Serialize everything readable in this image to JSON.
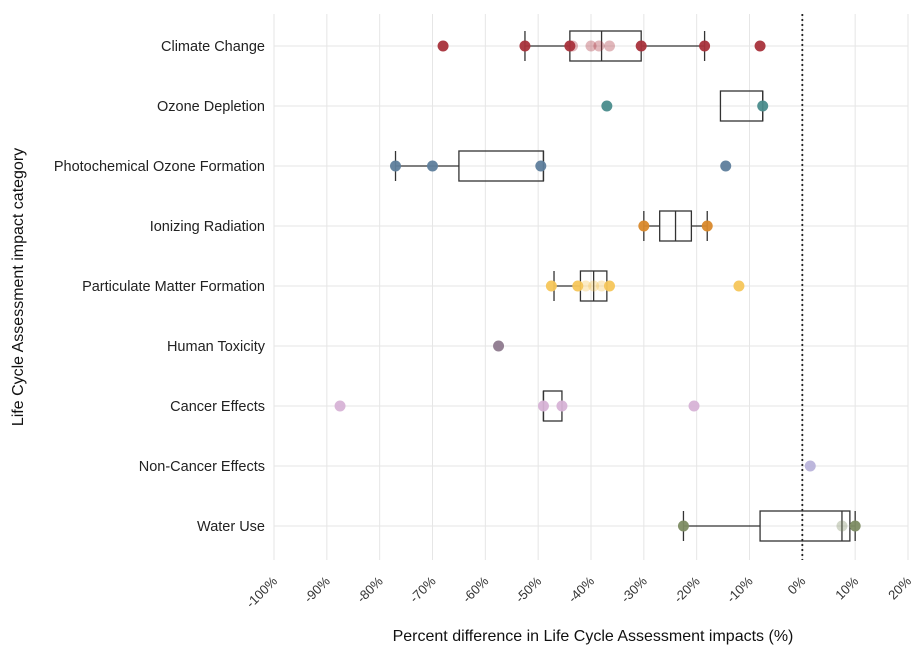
{
  "chart_data": {
    "type": "box",
    "xlabel": "Percent difference in Life Cycle Assessment impacts (%)",
    "ylabel": "Life Cycle Assessment impact category",
    "xlim": [
      -100,
      20
    ],
    "x_ticks": [
      -100,
      -90,
      -80,
      -70,
      -60,
      -50,
      -40,
      -30,
      -20,
      -10,
      0,
      10,
      20
    ],
    "x_tick_labels": [
      "-100%",
      "-90%",
      "-80%",
      "-70%",
      "-60%",
      "-50%",
      "-40%",
      "-30%",
      "-20%",
      "-10%",
      "0%",
      "10%",
      "20%"
    ],
    "reference_line": 0,
    "grid": true,
    "categories": [
      {
        "name": "Climate Change",
        "color": "#A8323B",
        "box": {
          "whisker_low": -52.5,
          "q1": -44,
          "median": -38,
          "q3": -30.5,
          "whisker_high": -18.5
        },
        "points": [
          {
            "x": -68,
            "style": "solid"
          },
          {
            "x": -52.5,
            "style": "solid"
          },
          {
            "x": -44,
            "style": "solid"
          },
          {
            "x": -43.5,
            "style": "faded"
          },
          {
            "x": -40,
            "style": "faded"
          },
          {
            "x": -38.5,
            "style": "faded"
          },
          {
            "x": -36.5,
            "style": "faded"
          },
          {
            "x": -30.5,
            "style": "solid"
          },
          {
            "x": -18.5,
            "style": "solid"
          },
          {
            "x": -8,
            "style": "solid"
          }
        ]
      },
      {
        "name": "Ozone Depletion",
        "color": "#4A8C8C",
        "box": {
          "whisker_low": -15.5,
          "q1": -15.5,
          "median": -7.5,
          "q3": -7.5,
          "whisker_high": -7.5
        },
        "points": [
          {
            "x": -37,
            "style": "solid"
          },
          {
            "x": -7.5,
            "style": "solid"
          }
        ]
      },
      {
        "name": "Photochemical Ozone Formation",
        "color": "#5E7E9C",
        "box": {
          "whisker_low": -77,
          "q1": -65,
          "median": -49,
          "q3": -49,
          "whisker_high": -49
        },
        "points": [
          {
            "x": -77,
            "style": "solid"
          },
          {
            "x": -70,
            "style": "solid"
          },
          {
            "x": -49.5,
            "style": "solid"
          },
          {
            "x": -14.5,
            "style": "solid"
          }
        ]
      },
      {
        "name": "Ionizing Radiation",
        "color": "#D9892B",
        "box": {
          "whisker_low": -30,
          "q1": -27,
          "median": -24,
          "q3": -21,
          "whisker_high": -18
        },
        "points": [
          {
            "x": -30,
            "style": "solid"
          },
          {
            "x": -18,
            "style": "solid"
          }
        ]
      },
      {
        "name": "Particulate Matter Formation",
        "color": "#F5C65A",
        "box": {
          "whisker_low": -47,
          "q1": -42,
          "median": -39.5,
          "q3": -37,
          "whisker_high": -37
        },
        "points": [
          {
            "x": -47.5,
            "style": "solid"
          },
          {
            "x": -42.5,
            "style": "solid"
          },
          {
            "x": -41,
            "style": "faded"
          },
          {
            "x": -39.5,
            "style": "faded"
          },
          {
            "x": -38,
            "style": "faded"
          },
          {
            "x": -36.5,
            "style": "solid"
          },
          {
            "x": -12,
            "style": "solid"
          }
        ]
      },
      {
        "name": "Human Toxicity",
        "color": "#8E7A8E",
        "box": null,
        "points": [
          {
            "x": -57.5,
            "style": "solid"
          }
        ]
      },
      {
        "name": "Cancer Effects",
        "color": "#D7B3D6",
        "box": {
          "whisker_low": -49,
          "q1": -49,
          "median": -49,
          "q3": -45.5,
          "whisker_high": -45.5
        },
        "points": [
          {
            "x": -87.5,
            "style": "solid"
          },
          {
            "x": -49,
            "style": "solid"
          },
          {
            "x": -45.5,
            "style": "solid"
          },
          {
            "x": -20.5,
            "style": "solid"
          }
        ]
      },
      {
        "name": "Non-Cancer Effects",
        "color": "#B9B3DA",
        "box": null,
        "points": [
          {
            "x": 1.5,
            "style": "solid"
          }
        ]
      },
      {
        "name": "Water Use",
        "color": "#7D8C63",
        "box": {
          "whisker_low": -22.5,
          "q1": -8,
          "median": 7.5,
          "q3": 9,
          "whisker_high": 10
        },
        "points": [
          {
            "x": -22.5,
            "style": "solid"
          },
          {
            "x": 7.5,
            "style": "faded"
          },
          {
            "x": 10,
            "style": "solid"
          }
        ]
      }
    ]
  }
}
